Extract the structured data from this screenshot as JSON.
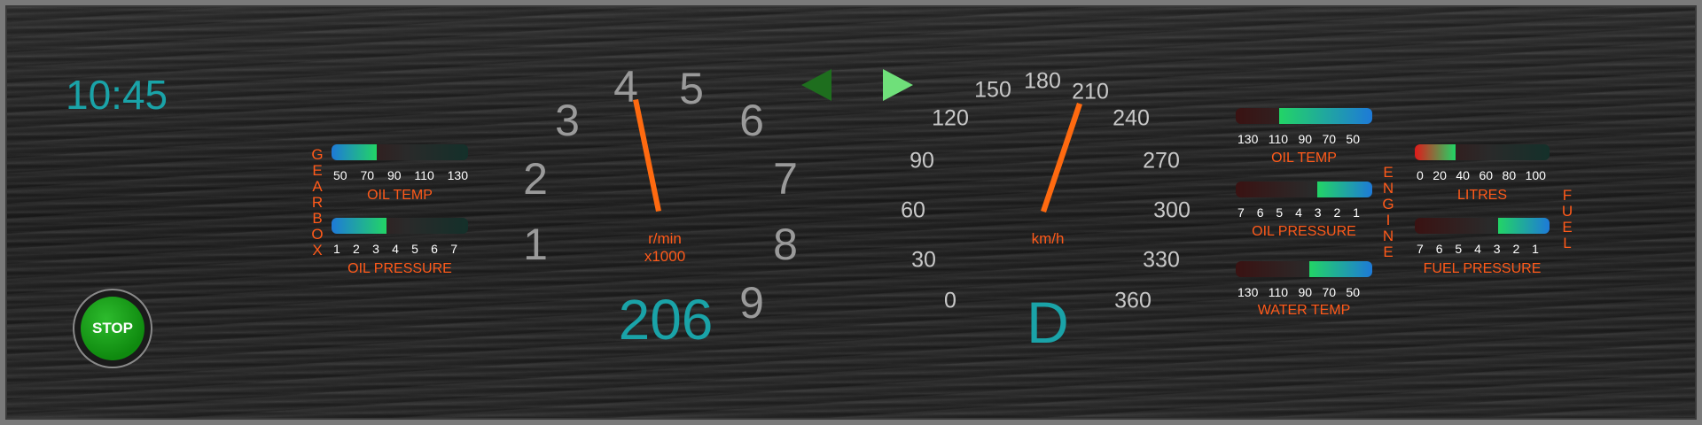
{
  "clock": "10:45",
  "stop_label": "STOP",
  "gearbox": {
    "side_label": [
      "G",
      "E",
      "A",
      "R",
      "B",
      "O",
      "X"
    ],
    "oil_temp": {
      "label": "OIL TEMP",
      "scale": [
        "50",
        "70",
        "90",
        "110",
        "130"
      ],
      "level": 0.33
    },
    "oil_pressure": {
      "label": "OIL PRESSURE",
      "scale": [
        "1",
        "2",
        "3",
        "4",
        "5",
        "6",
        "7"
      ],
      "level": 0.4
    }
  },
  "engine": {
    "side_label": [
      "E",
      "N",
      "G",
      "I",
      "N",
      "E"
    ],
    "oil_temp": {
      "label": "OIL TEMP",
      "scale": [
        "130",
        "110",
        "90",
        "70",
        "50"
      ],
      "level": 0.68
    },
    "oil_pressure": {
      "label": "OIL PRESSURE",
      "scale": [
        "7",
        "6",
        "5",
        "4",
        "3",
        "2",
        "1"
      ],
      "level": 0.4
    },
    "water_temp": {
      "label": "WATER TEMP",
      "scale": [
        "130",
        "110",
        "90",
        "70",
        "50"
      ],
      "level": 0.46
    }
  },
  "fuel": {
    "side_label": [
      "F",
      "U",
      "E",
      "L"
    ],
    "litres": {
      "label": "LITRES",
      "scale": [
        "0",
        "20",
        "40",
        "60",
        "80",
        "100"
      ],
      "level": 0.3
    },
    "fuel_pressure": {
      "label": "FUEL PRESSURE",
      "scale": [
        "7",
        "6",
        "5",
        "4",
        "3",
        "2",
        "1"
      ],
      "level": 0.38
    }
  },
  "tachometer": {
    "ticks": [
      "1",
      "2",
      "3",
      "4",
      "5",
      "6",
      "7",
      "8",
      "9"
    ],
    "unit_line1": "r/min",
    "unit_line2": "x1000",
    "value": "206"
  },
  "speedometer": {
    "ticks": [
      "0",
      "30",
      "60",
      "90",
      "120",
      "150",
      "180",
      "210",
      "240",
      "270",
      "300",
      "330",
      "360"
    ],
    "unit": "km/h",
    "gear": "D"
  },
  "colors": {
    "accent": "#1aa3a8",
    "warning": "#ff5a1a",
    "needle": "#ff6a10",
    "bar_fill": "#22d466"
  },
  "icons": {
    "left": "left-arrow-icon",
    "right": "right-arrow-icon"
  }
}
